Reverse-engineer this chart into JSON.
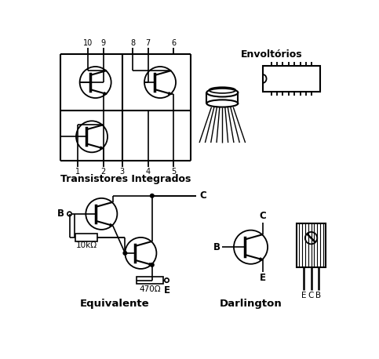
{
  "bg_color": "#ffffff",
  "text_color": "#000000",
  "label_transistores": "Transistores Integrados",
  "label_equivalente": "Equivalente",
  "label_darlington": "Darlington",
  "label_envoltorio": "Envoltórios",
  "resistor1": "10kΩ",
  "resistor2": "470Ω",
  "node_B": "B",
  "node_C": "C",
  "node_E": "E"
}
